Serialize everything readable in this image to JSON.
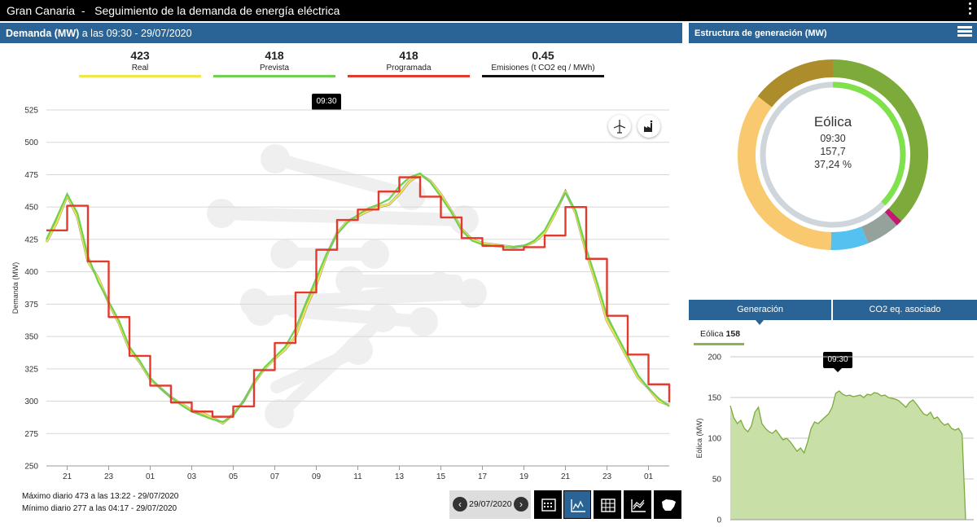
{
  "header": {
    "title": "Gran Canaria  -   Seguimiento de la demanda de energía eléctrica"
  },
  "demand_panel": {
    "title_bold": "Demanda (MW)",
    "title_rest": " a las 09:30 - 29/07/2020"
  },
  "kpis": [
    {
      "value": "423",
      "label": "Real",
      "color": "#f1e64a"
    },
    {
      "value": "418",
      "label": "Prevista",
      "color": "#6fd052"
    },
    {
      "value": "418",
      "label": "Programada",
      "color": "#e23b2e"
    },
    {
      "value": "0.45",
      "label": "Emisiones (t CO2 eq / MWh)",
      "color": "#111111"
    }
  ],
  "tooltip_time": "09:30",
  "chart_icons": [
    "wind-turbine-icon",
    "factory-icon"
  ],
  "footer": {
    "max": "Máximo diario 473 a las 13:22 - 29/07/2020",
    "min": "Mínimo diario 277 a las 04:17 - 29/07/2020"
  },
  "date_control": {
    "date": "29/07/2020",
    "prev": "‹",
    "next": "›"
  },
  "view_buttons": [
    "calendar-icon",
    "line-chart-icon",
    "table-icon",
    "stacked-chart-icon",
    "map-icon"
  ],
  "generation_panel": {
    "title": "Estructura de generación (MW)"
  },
  "donut": {
    "label": "Eólica",
    "time": "09:30",
    "value": "157,7",
    "percent": "37,24 %"
  },
  "tabs": [
    "Generación",
    "CO2 eq. asociado"
  ],
  "eolica_legend": {
    "name": "Eólica",
    "value": "158"
  },
  "colors": {
    "accent": "#2a6496",
    "real": "#f1e64a",
    "prevista": "#6fd052",
    "programada": "#e23b2e",
    "wind": "#7cab3b"
  },
  "chart_data": [
    {
      "type": "line",
      "ylabel": "Demanda (MW)",
      "ylim": [
        250,
        525
      ],
      "yticks": [
        250,
        275,
        300,
        325,
        350,
        375,
        400,
        425,
        450,
        475,
        500,
        525
      ],
      "xticks": [
        "21",
        "23",
        "01",
        "03",
        "05",
        "07",
        "09",
        "11",
        "13",
        "15",
        "17",
        "19",
        "21",
        "23",
        "01"
      ],
      "x_hours": [
        20.0,
        20.5,
        21.0,
        21.5,
        22.0,
        22.5,
        23.0,
        23.5,
        24.0,
        24.5,
        25.0,
        25.5,
        26.0,
        26.5,
        27.0,
        27.5,
        28.0,
        28.5,
        29.0,
        29.5,
        30.0,
        30.5,
        31.0,
        31.5,
        32.0,
        32.5,
        33.0,
        33.5,
        34.0,
        34.5,
        35.0,
        35.5,
        36.0,
        36.5,
        37.0,
        37.5,
        38.0,
        38.5,
        39.0,
        39.5,
        40.0,
        40.5,
        41.0,
        41.5,
        42.0,
        42.5,
        43.0,
        43.5,
        44.0,
        44.5,
        45.0,
        45.5,
        46.0,
        46.5,
        47.0,
        47.5,
        48.0,
        48.5,
        49.0,
        49.5,
        50.0
      ],
      "series": [
        {
          "name": "Real",
          "color": "#f1e64a",
          "values": [
            423,
            438,
            459,
            442,
            408,
            395,
            376,
            360,
            340,
            330,
            317,
            310,
            303,
            298,
            293,
            291,
            287,
            283,
            290,
            300,
            314,
            325,
            333,
            340,
            350,
            372,
            390,
            413,
            430,
            439,
            443,
            447,
            450,
            452,
            460,
            470,
            475,
            470,
            460,
            447,
            433,
            425,
            422,
            421,
            420,
            419,
            420,
            423,
            430,
            445,
            462,
            445,
            415,
            390,
            362,
            348,
            333,
            318,
            310,
            300,
            297
          ]
        },
        {
          "name": "Prevista",
          "color": "#6fd052",
          "values": [
            425,
            442,
            460,
            445,
            412,
            392,
            377,
            362,
            342,
            331,
            318,
            310,
            303,
            297,
            292,
            289,
            286,
            284,
            289,
            300,
            315,
            326,
            334,
            342,
            356,
            376,
            395,
            414,
            429,
            438,
            444,
            449,
            452,
            456,
            466,
            473,
            476,
            469,
            458,
            446,
            432,
            424,
            421,
            420,
            419,
            419,
            420,
            424,
            432,
            447,
            461,
            447,
            418,
            393,
            366,
            350,
            335,
            320,
            310,
            302,
            296
          ]
        },
        {
          "name": "Programada",
          "color": "#e23b2e",
          "step": true,
          "values": [
            432,
            432,
            451,
            451,
            408,
            408,
            365,
            365,
            335,
            335,
            312,
            312,
            299,
            299,
            292,
            292,
            288,
            288,
            296,
            296,
            324,
            324,
            345,
            345,
            384,
            384,
            417,
            417,
            440,
            440,
            448,
            448,
            462,
            462,
            473,
            473,
            458,
            458,
            442,
            442,
            426,
            426,
            420,
            420,
            417,
            417,
            419,
            419,
            428,
            428,
            450,
            450,
            410,
            410,
            366,
            366,
            336,
            336,
            313,
            313,
            299
          ]
        }
      ]
    },
    {
      "type": "pie",
      "title": "Estructura de generación (MW)",
      "slices": [
        {
          "name": "Eólica",
          "value": 157.7,
          "color": "#7cab3b"
        },
        {
          "name": "slice-magenta",
          "value": 4.5,
          "color": "#c2186f"
        },
        {
          "name": "slice-gray",
          "value": 24,
          "color": "#94a29b"
        },
        {
          "name": "slice-blue",
          "value": 27,
          "color": "#53c2f0"
        },
        {
          "name": "slice-orange",
          "value": 149,
          "color": "#f8c96e"
        },
        {
          "name": "slice-olive",
          "value": 61.3,
          "color": "#ad8c2c"
        }
      ]
    },
    {
      "type": "area",
      "ylabel": "Eólica (MW)",
      "ylim": [
        0,
        200
      ],
      "yticks": [
        0,
        50,
        100,
        150,
        200
      ],
      "series": [
        {
          "name": "Eólica",
          "color": "#7cab3b",
          "values": [
            140,
            125,
            118,
            122,
            112,
            108,
            115,
            132,
            138,
            118,
            112,
            108,
            106,
            110,
            104,
            98,
            100,
            96,
            90,
            84,
            88,
            82,
            95,
            112,
            120,
            118,
            122,
            126,
            130,
            138,
            155,
            158,
            154,
            152,
            153,
            151,
            152,
            153,
            150,
            154,
            153,
            156,
            155,
            152,
            153,
            150,
            149,
            148,
            146,
            142,
            138,
            144,
            147,
            142,
            136,
            130,
            128,
            132,
            124,
            126,
            120,
            116,
            118,
            112,
            110,
            112,
            105,
            0
          ]
        }
      ]
    }
  ]
}
